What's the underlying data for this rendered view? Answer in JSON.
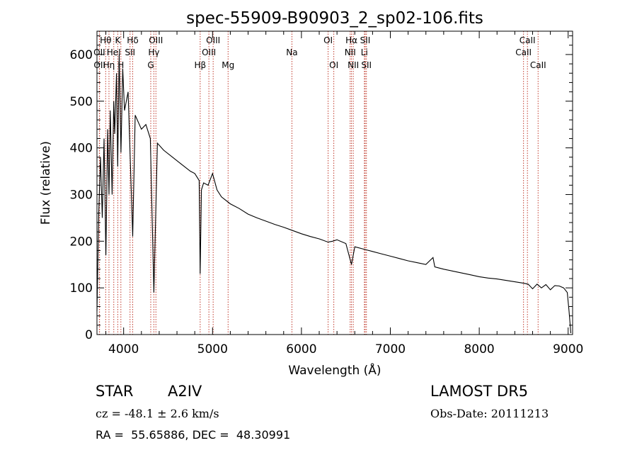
{
  "chart_data": {
    "type": "line",
    "title": "spec-55909-B90903_2_sp02-106.fits",
    "xlabel": "Wavelength (Å)",
    "ylabel": "Flux (relative)",
    "xlim": [
      3700,
      9050
    ],
    "ylim": [
      0,
      650
    ],
    "x_ticks": [
      4000,
      5000,
      6000,
      7000,
      8000,
      9000
    ],
    "y_ticks": [
      0,
      100,
      200,
      300,
      400,
      500,
      600
    ],
    "grid": false,
    "series": [
      {
        "x": [
          3700,
          3720,
          3740,
          3760,
          3780,
          3800,
          3820,
          3835,
          3850,
          3870,
          3889,
          3900,
          3920,
          3933,
          3950,
          3970,
          3990,
          4010,
          4050,
          4102,
          4130,
          4200,
          4250,
          4300,
          4340,
          4380,
          4450,
          4550,
          4650,
          4750,
          4800,
          4850,
          4861,
          4875,
          4900,
          4950,
          5000,
          5050,
          5100,
          5200,
          5300,
          5400,
          5500,
          5600,
          5700,
          5800,
          5900,
          6000,
          6100,
          6200,
          6300,
          6350,
          6400,
          6500,
          6563,
          6600,
          6700,
          6800,
          6900,
          7000,
          7100,
          7200,
          7300,
          7400,
          7480,
          7500,
          7600,
          7700,
          7800,
          7900,
          8000,
          8100,
          8200,
          8300,
          8400,
          8500,
          8550,
          8600,
          8650,
          8700,
          8750,
          8800,
          8850,
          8900,
          8950,
          8990,
          9010,
          9030
        ],
        "y": [
          50,
          260,
          380,
          250,
          420,
          170,
          440,
          300,
          480,
          300,
          500,
          430,
          560,
          360,
          600,
          390,
          570,
          480,
          520,
          210,
          470,
          440,
          450,
          420,
          90,
          410,
          395,
          380,
          365,
          350,
          345,
          330,
          130,
          310,
          325,
          320,
          345,
          310,
          295,
          280,
          270,
          258,
          250,
          243,
          236,
          230,
          223,
          216,
          210,
          205,
          198,
          200,
          203,
          195,
          150,
          188,
          183,
          178,
          173,
          168,
          163,
          158,
          154,
          150,
          165,
          145,
          140,
          136,
          132,
          128,
          124,
          121,
          119,
          116,
          113,
          110,
          108,
          98,
          108,
          100,
          107,
          96,
          105,
          104,
          100,
          90,
          50,
          3
        ]
      }
    ],
    "lines_row1": [
      {
        "label": "Hθ",
        "x": 3798
      },
      {
        "label": "K",
        "x": 3934
      },
      {
        "label": "Hδ",
        "x": 4102
      },
      {
        "label": "OIII",
        "x": 4363
      },
      {
        "label": "OIII",
        "x": 5007
      },
      {
        "label": "OI",
        "x": 6300
      },
      {
        "label": "Hα",
        "x": 6563
      },
      {
        "label": "SII",
        "x": 6717
      },
      {
        "label": "CaII",
        "x": 8542
      }
    ],
    "lines_row2": [
      {
        "label": "OII",
        "x": 3727
      },
      {
        "label": "HeI",
        "x": 3889
      },
      {
        "label": "SII",
        "x": 4072
      },
      {
        "label": "Hγ",
        "x": 4340
      },
      {
        "label": "OIII",
        "x": 4959
      },
      {
        "label": "Na",
        "x": 5893
      },
      {
        "label": "NII",
        "x": 6548
      },
      {
        "label": "Li",
        "x": 6708
      },
      {
        "label": "CaII",
        "x": 8498
      }
    ],
    "lines_row3": [
      {
        "label": "OII",
        "x": 3729
      },
      {
        "label": "Hη",
        "x": 3835
      },
      {
        "label": "H",
        "x": 3969
      },
      {
        "label": "G",
        "x": 4305
      },
      {
        "label": "Hβ",
        "x": 4861
      },
      {
        "label": "Mg",
        "x": 5175
      },
      {
        "label": "OI",
        "x": 6364
      },
      {
        "label": "NII",
        "x": 6583
      },
      {
        "label": "SII",
        "x": 6731
      },
      {
        "label": "CaII",
        "x": 8662
      }
    ],
    "line_color": "#000000",
    "marker_color": "#c0392b"
  },
  "info": {
    "object": "STAR",
    "subclass": "A2IV",
    "cz": "cz = -48.1 ± 2.6 km/s",
    "coords": "RA =  55.65886, DEC =  48.30991",
    "survey": "LAMOST DR5",
    "obs_date": "Obs-Date: 20111213"
  }
}
